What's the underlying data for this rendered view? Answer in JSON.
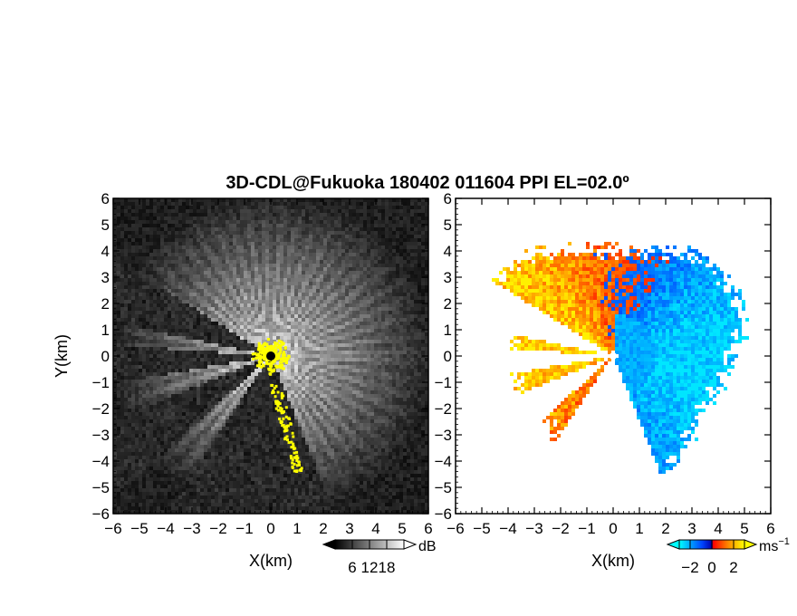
{
  "chart_data": [
    {
      "type": "heatmap",
      "panel": "left",
      "title": "3D-CDL@Fukuoka 180402 011604 PPI EL=02.0º",
      "xlabel": "X(km)",
      "ylabel": "Y(km)",
      "xlim": [
        -6,
        6
      ],
      "ylim": [
        -6,
        6
      ],
      "xticks": [
        "-6",
        "-5",
        "-4",
        "-3",
        "-2",
        "-1",
        "0",
        "1",
        "2",
        "3",
        "4",
        "5",
        "6"
      ],
      "yticks": [
        "-6",
        "-5",
        "-4",
        "-3",
        "-2",
        "-1",
        "0",
        "1",
        "2",
        "3",
        "4",
        "5",
        "6"
      ],
      "colorbar": {
        "unit": "dB",
        "ticks": [
          "6",
          "12",
          "18"
        ],
        "range": [
          0,
          24
        ],
        "colors": [
          "#000000",
          "#ffffff"
        ]
      },
      "highlight_color": "#ffff00",
      "background_color": "#141414"
    },
    {
      "type": "heatmap",
      "panel": "right",
      "xlabel": "X(km)",
      "xlim": [
        -6,
        6
      ],
      "ylim": [
        -6,
        6
      ],
      "xticks": [
        "-6",
        "-5",
        "-4",
        "-3",
        "-2",
        "-1",
        "0",
        "1",
        "2",
        "3",
        "4",
        "5",
        "6"
      ],
      "yticks": [
        "-6",
        "-5",
        "-4",
        "-3",
        "-2",
        "-1",
        "0",
        "1",
        "2",
        "3",
        "4",
        "5",
        "6"
      ],
      "colorbar": {
        "unit": "ms",
        "unit_exponent": "−1",
        "ticks": [
          "−2",
          "0",
          "2"
        ],
        "range": [
          -3,
          3
        ],
        "colors": [
          "#00ffff",
          "#0044ff",
          "#ff0000",
          "#ffff00"
        ]
      }
    }
  ]
}
